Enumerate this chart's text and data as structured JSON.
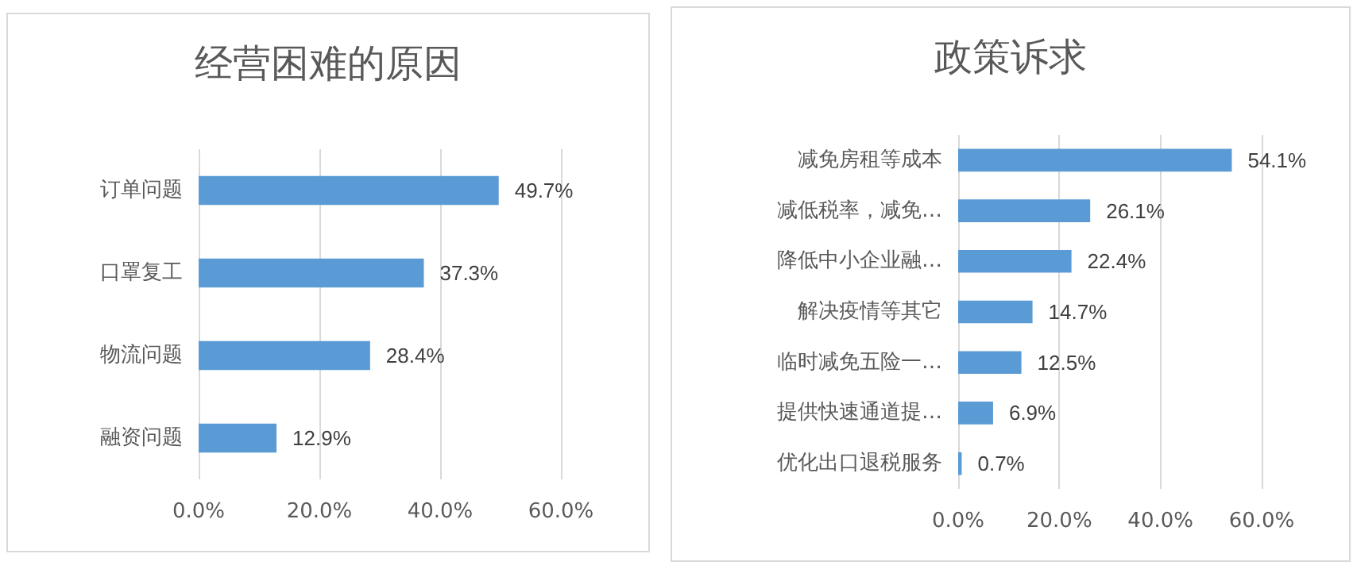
{
  "chart_data": [
    {
      "type": "bar",
      "orientation": "horizontal",
      "title": "经营困难的原因",
      "categories": [
        "订单问题",
        "口罩复工",
        "物流问题",
        "融资问题"
      ],
      "values": [
        49.7,
        37.3,
        28.4,
        12.9
      ],
      "value_labels": [
        "49.7%",
        "37.3%",
        "28.4%",
        "12.9%"
      ],
      "color": "#5b9bd5",
      "xlim": [
        0,
        60
      ],
      "xticks": [
        {
          "value": 0,
          "label": "0.0%"
        },
        {
          "value": 20,
          "label": "20.0%"
        },
        {
          "value": 40,
          "label": "40.0%"
        },
        {
          "value": 60,
          "label": "60.0%"
        }
      ],
      "grid": "x"
    },
    {
      "type": "bar",
      "orientation": "horizontal",
      "title": "政策诉求",
      "categories": [
        "减免房租等成本",
        "减低税率，减免…",
        "降低中小企业融…",
        "解决疫情等其它",
        "临时减免五险一…",
        "提供快速通道提…",
        "优化出口退税服务"
      ],
      "values": [
        54.1,
        26.1,
        22.4,
        14.7,
        12.5,
        6.9,
        0.7
      ],
      "value_labels": [
        "54.1%",
        "26.1%",
        "22.4%",
        "14.7%",
        "12.5%",
        "6.9%",
        "0.7%"
      ],
      "color": "#5b9bd5",
      "xlim": [
        0,
        60
      ],
      "xticks": [
        {
          "value": 0,
          "label": "0.0%"
        },
        {
          "value": 20,
          "label": "20.0%"
        },
        {
          "value": 40,
          "label": "40.0%"
        },
        {
          "value": 60,
          "label": "60.0%"
        }
      ],
      "grid": "x"
    }
  ]
}
